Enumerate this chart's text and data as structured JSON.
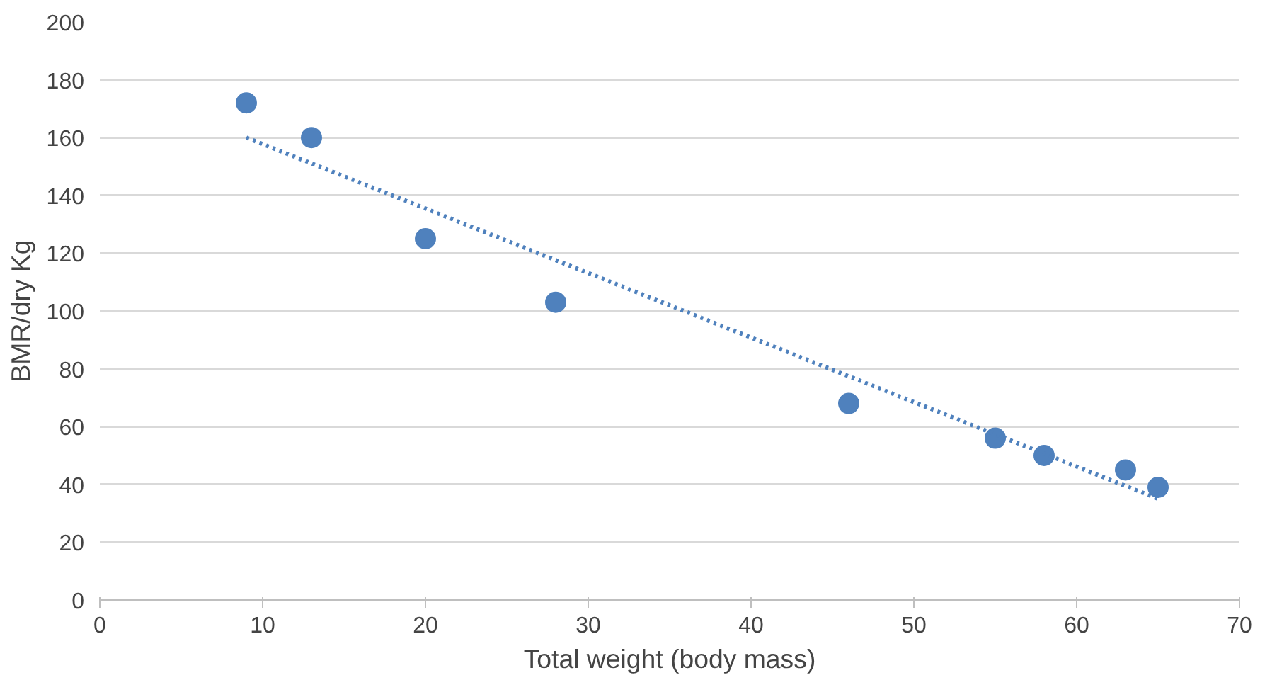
{
  "chart_data": {
    "type": "scatter",
    "xlabel": "Total weight (body mass)",
    "ylabel": "BMR/dry Kg",
    "xlim": [
      0,
      70
    ],
    "xticks": [
      0,
      10,
      20,
      30,
      40,
      50,
      60,
      70
    ],
    "ylim": [
      0,
      200
    ],
    "yticks": [
      0,
      20,
      40,
      60,
      80,
      100,
      120,
      140,
      160,
      180,
      200
    ],
    "grid": "y",
    "marker": "circle",
    "series": [
      {
        "color": "#4f81bd",
        "x": [
          9,
          13,
          20,
          28,
          46,
          55,
          58,
          63,
          65
        ],
        "values": [
          172,
          160,
          125,
          103,
          68,
          56,
          50,
          45,
          39
        ]
      },
      {
        "type": "line",
        "line_style": "dotted",
        "marker": "none",
        "color": "#4f81bd",
        "x": [
          9,
          65
        ],
        "values": [
          160,
          35
        ]
      }
    ]
  }
}
